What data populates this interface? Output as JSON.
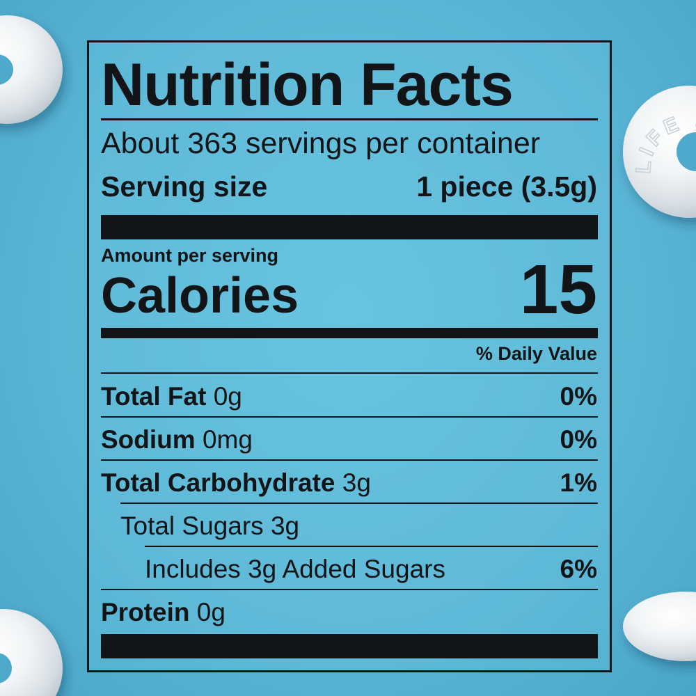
{
  "background_color": "#5ab5d4",
  "candy_embossing": "LIFE SAVERS",
  "label": {
    "title": "Nutrition Facts",
    "servings_per_container": "About 363 servings per container",
    "serving_size_label": "Serving size",
    "serving_size_value": "1 piece (3.5g)",
    "amount_per_serving": "Amount per serving",
    "calories_label": "Calories",
    "calories_value": "15",
    "daily_value_header": "% Daily Value",
    "nutrients": [
      {
        "name": "Total Fat",
        "amount": "0g",
        "dv": "0%"
      },
      {
        "name": "Sodium",
        "amount": "0mg",
        "dv": "0%"
      },
      {
        "name": "Total Carbohydrate",
        "amount": "3g",
        "dv": "1%"
      },
      {
        "name": "Total Sugars 3g",
        "amount": "",
        "dv": ""
      },
      {
        "name": "Includes 3g Added Sugars",
        "amount": "",
        "dv": "6%"
      },
      {
        "name": "Protein",
        "amount": "0g",
        "dv": ""
      }
    ]
  }
}
